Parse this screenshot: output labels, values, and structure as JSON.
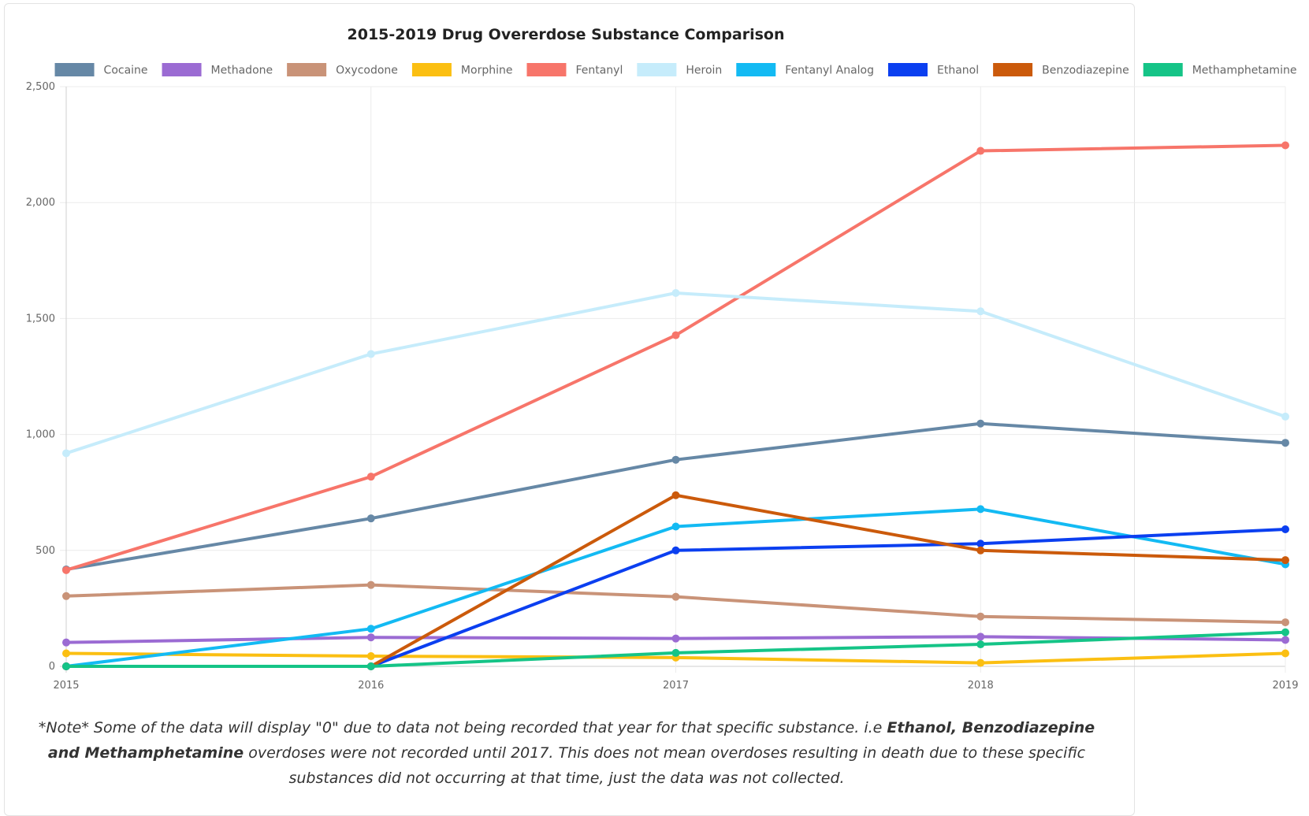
{
  "chart_data": {
    "type": "line",
    "title": "2015-2019 Drug Overerdose Substance Comparison",
    "x": [
      "2015",
      "2016",
      "2017",
      "2018",
      "2019"
    ],
    "ylim": [
      0,
      2500
    ],
    "yticks": [
      0,
      500,
      1000,
      1500,
      2000,
      2500
    ],
    "ytick_labels": [
      "0",
      "500",
      "1,000",
      "1,500",
      "2,000",
      "2,500"
    ],
    "grid": true,
    "legend_position": "top",
    "series": [
      {
        "name": "Cocaine",
        "color": "#6688a6",
        "values": [
          418,
          638,
          891,
          1047,
          964
        ]
      },
      {
        "name": "Methadone",
        "color": "#9b6bd3",
        "values": [
          103,
          125,
          120,
          128,
          114
        ]
      },
      {
        "name": "Oxycodone",
        "color": "#c99378",
        "values": [
          303,
          351,
          300,
          215,
          190
        ]
      },
      {
        "name": "Morphine",
        "color": "#fbbf12",
        "values": [
          56,
          44,
          38,
          15,
          56
        ]
      },
      {
        "name": "Fentanyl",
        "color": "#f7756a",
        "values": [
          415,
          818,
          1428,
          2223,
          2247
        ]
      },
      {
        "name": "Heroin",
        "color": "#c6ecfb",
        "values": [
          919,
          1347,
          1610,
          1531,
          1077
        ]
      },
      {
        "name": "Fentanyl Analog",
        "color": "#13baf3",
        "values": [
          0,
          162,
          603,
          678,
          440
        ]
      },
      {
        "name": "Ethanol",
        "color": "#0b3ff0",
        "values": [
          0,
          0,
          500,
          529,
          591
        ]
      },
      {
        "name": "Benzodiazepine",
        "color": "#cb5a0b",
        "values": [
          0,
          0,
          738,
          500,
          458
        ]
      },
      {
        "name": "Methamphetamine",
        "color": "#15c487",
        "values": [
          0,
          0,
          58,
          95,
          147
        ]
      }
    ]
  },
  "note": {
    "part1": "*Note* Some of the data will display \"0\" due to data not being recorded that year for that specific substance. i.e ",
    "bold": "Ethanol, Benzodiazepine and Methamphetamine",
    "part2": " overdoses were not recorded until 2017. This does not mean overdoses resulting in death due to these specific substances did not occurring at that time, just the data was not collected."
  }
}
